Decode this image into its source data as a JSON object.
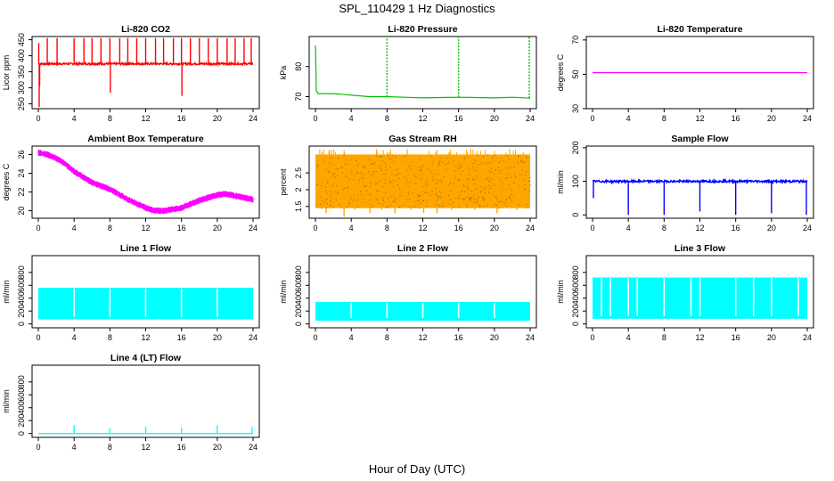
{
  "title": "SPL_110429  1 Hz Diagnostics",
  "xlabel": "Hour of Day (UTC)",
  "chart_data": [
    {
      "type": "line",
      "title": "Li-820 CO2",
      "ylabel": "Licor ppm",
      "color": "#ff0000",
      "xlim": [
        0,
        24
      ],
      "xticks": [
        0,
        4,
        8,
        12,
        16,
        20,
        24
      ],
      "ylim": [
        235,
        460
      ],
      "yticks": [
        250,
        300,
        350,
        400,
        450
      ],
      "baseline": 375,
      "noise": 3,
      "spikes": [
        {
          "x": 0.05,
          "y": 440
        },
        {
          "x": 0.1,
          "y": 240
        },
        {
          "x": 0.15,
          "y": 305
        },
        {
          "x": 1.0,
          "y": 455
        },
        {
          "x": 2.1,
          "y": 455
        },
        {
          "x": 4.0,
          "y": 455
        },
        {
          "x": 5.1,
          "y": 455
        },
        {
          "x": 6.0,
          "y": 455
        },
        {
          "x": 7.0,
          "y": 455
        },
        {
          "x": 8.0,
          "y": 455
        },
        {
          "x": 8.05,
          "y": 285
        },
        {
          "x": 9.1,
          "y": 455
        },
        {
          "x": 10.0,
          "y": 455
        },
        {
          "x": 11.0,
          "y": 455
        },
        {
          "x": 12.0,
          "y": 455
        },
        {
          "x": 13.1,
          "y": 455
        },
        {
          "x": 14.0,
          "y": 455
        },
        {
          "x": 15.1,
          "y": 455
        },
        {
          "x": 16.0,
          "y": 455
        },
        {
          "x": 16.05,
          "y": 275
        },
        {
          "x": 17.0,
          "y": 455
        },
        {
          "x": 18.0,
          "y": 455
        },
        {
          "x": 19.0,
          "y": 455
        },
        {
          "x": 20.0,
          "y": 455
        },
        {
          "x": 21.1,
          "y": 455
        },
        {
          "x": 22.0,
          "y": 455
        },
        {
          "x": 23.0,
          "y": 455
        },
        {
          "x": 23.8,
          "y": 455
        }
      ]
    },
    {
      "type": "line",
      "title": "Li-820 Pressure",
      "ylabel": "kPa",
      "color": "#00c000",
      "xlim": [
        0,
        24
      ],
      "xticks": [
        0,
        4,
        8,
        12,
        16,
        20,
        24
      ],
      "ylim": [
        66,
        90
      ],
      "yticks": [
        70,
        80
      ],
      "series": {
        "x": [
          0,
          0.1,
          0.3,
          2,
          4,
          6,
          8,
          10,
          12,
          14,
          16,
          18,
          20,
          22,
          24
        ],
        "y": [
          87,
          72,
          71,
          71,
          70.5,
          70,
          70,
          69.8,
          69.6,
          69.7,
          69.8,
          69.7,
          69.6,
          69.8,
          69.5
        ]
      },
      "spikes": [
        {
          "x": 0.0,
          "y": 87
        },
        {
          "x": 8.0,
          "y": 90
        },
        {
          "x": 16.0,
          "y": 90
        },
        {
          "x": 23.9,
          "y": 90
        }
      ]
    },
    {
      "type": "line",
      "title": "Li-820 Temperature",
      "ylabel": "degrees C",
      "color": "#ff00ff",
      "xlim": [
        0,
        24
      ],
      "xticks": [
        0,
        4,
        8,
        12,
        16,
        20,
        24
      ],
      "ylim": [
        30,
        72
      ],
      "yticks": [
        30,
        50,
        70
      ],
      "series": {
        "x": [
          0,
          24
        ],
        "y": [
          51,
          51
        ]
      }
    },
    {
      "type": "line",
      "title": "Ambient Box Temperature",
      "ylabel": "degrees C",
      "color": "#ff00ff",
      "xlim": [
        0,
        24
      ],
      "xticks": [
        0,
        4,
        8,
        12,
        16,
        20,
        24
      ],
      "ylim": [
        19.2,
        26.9
      ],
      "yticks": [
        20,
        22,
        24,
        26
      ],
      "noise": 0.35,
      "series": {
        "x": [
          0,
          1,
          2,
          3,
          4,
          6,
          8,
          10,
          12,
          13,
          14,
          16,
          18,
          20,
          21,
          22,
          24
        ],
        "y": [
          26.2,
          26,
          25.6,
          25,
          24.2,
          23,
          22.3,
          21.2,
          20.3,
          20.0,
          20.0,
          20.3,
          21.1,
          21.7,
          21.8,
          21.6,
          21.2
        ]
      }
    },
    {
      "type": "line",
      "title": "Gas Stream RH",
      "ylabel": "percent",
      "color": "#ffa500",
      "xlim": [
        0,
        24
      ],
      "xticks": [
        0,
        4,
        8,
        12,
        16,
        20,
        24
      ],
      "ylim": [
        1.15,
        3.3
      ],
      "yticks": [
        1.5,
        2.0,
        2.5
      ],
      "band": [
        1.45,
        3.05
      ],
      "dips": [
        {
          "x": 1.2,
          "y": 1.3
        },
        {
          "x": 3.2,
          "y": 1.2
        },
        {
          "x": 4.4,
          "y": 1.4
        },
        {
          "x": 6.1,
          "y": 1.3
        },
        {
          "x": 7.4,
          "y": 1.4
        },
        {
          "x": 8.9,
          "y": 1.3
        },
        {
          "x": 10.7,
          "y": 1.4
        },
        {
          "x": 12.1,
          "y": 1.3
        },
        {
          "x": 13.6,
          "y": 1.3
        },
        {
          "x": 15.2,
          "y": 1.4
        },
        {
          "x": 17.8,
          "y": 1.4
        },
        {
          "x": 20.3,
          "y": 1.3
        },
        {
          "x": 22.5,
          "y": 1.4
        }
      ]
    },
    {
      "type": "line",
      "title": "Sample Flow",
      "ylabel": "ml/min",
      "color": "#0000ff",
      "xlim": [
        0,
        24
      ],
      "xticks": [
        0,
        4,
        8,
        12,
        16,
        20,
        24
      ],
      "ylim": [
        -10,
        205
      ],
      "yticks": [
        0,
        100,
        200
      ],
      "baseline": 100,
      "noise": 3,
      "dips": [
        {
          "x": 0.1,
          "y": 50
        },
        {
          "x": 4.0,
          "y": 0
        },
        {
          "x": 8.0,
          "y": 0
        },
        {
          "x": 12.0,
          "y": 10
        },
        {
          "x": 16.0,
          "y": 0
        },
        {
          "x": 20.0,
          "y": 5
        },
        {
          "x": 23.9,
          "y": 0
        }
      ]
    },
    {
      "type": "line",
      "title": "Line 1 Flow",
      "ylabel": "ml/min",
      "color": "#00ffff",
      "xlim": [
        0,
        24
      ],
      "xticks": [
        0,
        4,
        8,
        12,
        16,
        20,
        24
      ],
      "ylim": [
        -60,
        1060
      ],
      "yticks": [
        0,
        200,
        400,
        600,
        800
      ],
      "band": [
        70,
        560
      ],
      "gaps": [
        4.0,
        8.0,
        12.0,
        16.0,
        20.0
      ]
    },
    {
      "type": "line",
      "title": "Line 2 Flow",
      "ylabel": "ml/min",
      "color": "#00ffff",
      "xlim": [
        0,
        24
      ],
      "xticks": [
        0,
        4,
        8,
        12,
        16,
        20,
        24
      ],
      "ylim": [
        -60,
        1060
      ],
      "yticks": [
        0,
        200,
        400,
        600,
        800
      ],
      "band": [
        50,
        340
      ],
      "gaps": [
        4.0,
        8.0,
        12.0,
        16.0,
        20.0
      ]
    },
    {
      "type": "line",
      "title": "Line 3 Flow",
      "ylabel": "ml/min",
      "color": "#00ffff",
      "xlim": [
        0,
        24
      ],
      "xticks": [
        0,
        4,
        8,
        12,
        16,
        20,
        24
      ],
      "ylim": [
        -60,
        1060
      ],
      "yticks": [
        0,
        200,
        400,
        600,
        800
      ],
      "band": [
        80,
        720
      ],
      "gaps": [
        1.0,
        2.0,
        4.0,
        5.0,
        8.0,
        11.0,
        12.0,
        16.0,
        18.0,
        20.0,
        23.0
      ]
    },
    {
      "type": "line",
      "title": "Line 4 (LT) Flow",
      "ylabel": "ml/min",
      "color": "#00ffff",
      "xlim": [
        0,
        24
      ],
      "xticks": [
        0,
        4,
        8,
        12,
        16,
        20,
        24
      ],
      "ylim": [
        -60,
        1060
      ],
      "yticks": [
        0,
        200,
        400,
        600,
        800
      ],
      "baseline": 0,
      "spikes": [
        {
          "x": 4.0,
          "y": 130
        },
        {
          "x": 8.0,
          "y": 80
        },
        {
          "x": 12.0,
          "y": 110
        },
        {
          "x": 16.0,
          "y": 90
        },
        {
          "x": 20.0,
          "y": 130
        },
        {
          "x": 23.9,
          "y": 100
        }
      ]
    }
  ]
}
